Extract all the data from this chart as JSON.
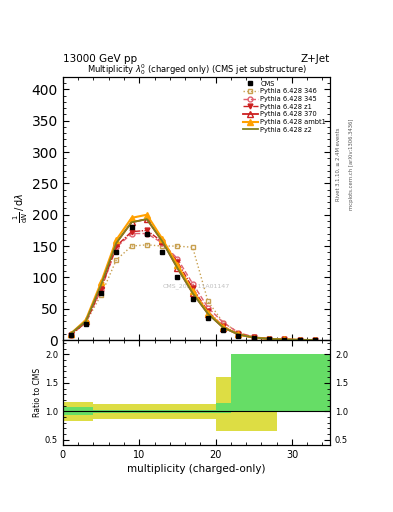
{
  "title": "Multiplicity $\\lambda_{0}^{0}$ (charged only) (CMS jet substructure)",
  "top_left_label": "13000 GeV pp",
  "top_right_label": "Z+Jet",
  "right_label1": "Rivet 3.1.10, ≥ 2.4M events",
  "right_label2": "mcplots.cern.ch [arXiv:1306.3436]",
  "xlabel": "multiplicity (charged-only)",
  "watermark": "CMS_2021_11A01147",
  "xlim": [
    0,
    35
  ],
  "ylim_main": [
    0,
    420
  ],
  "ylim_ratio": [
    0.4,
    2.25
  ],
  "yticks_main": [
    0,
    50,
    100,
    150,
    200,
    250,
    300,
    350,
    400
  ],
  "yticks_ratio": [
    0.5,
    1.0,
    1.5,
    2.0
  ],
  "cms_x": [
    1,
    3,
    5,
    7,
    9,
    11,
    13,
    15,
    17,
    19,
    21,
    23,
    25,
    27,
    29,
    31,
    33
  ],
  "cms_y": [
    8,
    25,
    75,
    140,
    180,
    170,
    140,
    100,
    65,
    35,
    16,
    7,
    3,
    1.5,
    0.8,
    0.3,
    0.1
  ],
  "p345_x": [
    1,
    3,
    5,
    7,
    9,
    11,
    13,
    15,
    17,
    19,
    21,
    23,
    25,
    27,
    29,
    31,
    33
  ],
  "p345_y": [
    8,
    28,
    80,
    148,
    170,
    170,
    155,
    130,
    90,
    52,
    28,
    12,
    5,
    2.5,
    1.2,
    0.5,
    0.2
  ],
  "p346_x": [
    1,
    3,
    5,
    7,
    9,
    11,
    13,
    15,
    17,
    19,
    21,
    23,
    25,
    27,
    29,
    31,
    33
  ],
  "p346_y": [
    8,
    28,
    72,
    128,
    150,
    152,
    150,
    150,
    148,
    62,
    28,
    12,
    5,
    2.5,
    1.2,
    0.5,
    0.2
  ],
  "p370_x": [
    1,
    3,
    5,
    7,
    9,
    11,
    13,
    15,
    17,
    19,
    21,
    23,
    25,
    27,
    29,
    31,
    33
  ],
  "p370_y": [
    10,
    30,
    88,
    155,
    188,
    193,
    158,
    115,
    75,
    42,
    20,
    9,
    4,
    2,
    1,
    0.4,
    0.15
  ],
  "pambt1_x": [
    1,
    3,
    5,
    7,
    9,
    11,
    13,
    15,
    17,
    19,
    21,
    23,
    25,
    27,
    29,
    31,
    33
  ],
  "pambt1_y": [
    10,
    32,
    92,
    160,
    195,
    200,
    162,
    120,
    78,
    44,
    21,
    9,
    4,
    2,
    1,
    0.4,
    0.15
  ],
  "pz1_x": [
    1,
    3,
    5,
    7,
    9,
    11,
    13,
    15,
    17,
    19,
    21,
    23,
    25,
    27,
    29,
    31,
    33
  ],
  "pz1_y": [
    8,
    28,
    82,
    150,
    173,
    175,
    157,
    125,
    83,
    46,
    22,
    10,
    4.5,
    2.2,
    1.1,
    0.45,
    0.18
  ],
  "pz2_x": [
    1,
    3,
    5,
    7,
    9,
    11,
    13,
    15,
    17,
    19,
    21,
    23,
    25,
    27,
    29,
    31,
    33
  ],
  "pz2_y": [
    10,
    30,
    88,
    155,
    188,
    193,
    158,
    115,
    75,
    42,
    20,
    9,
    4,
    2,
    1,
    0.4,
    0.15
  ],
  "ratio_bin_edges": [
    0,
    4,
    8,
    12,
    16,
    20,
    22,
    28,
    35
  ],
  "ratio_green_lo": [
    0.93,
    0.97,
    0.97,
    0.97,
    0.97,
    0.97,
    1.0,
    1.0
  ],
  "ratio_green_hi": [
    1.07,
    1.03,
    1.03,
    1.03,
    1.03,
    1.15,
    2.0,
    2.0
  ],
  "ratio_yellow_lo": [
    0.83,
    0.87,
    0.87,
    0.87,
    0.87,
    0.65,
    0.65,
    1.0
  ],
  "ratio_yellow_hi": [
    1.17,
    1.13,
    1.13,
    1.13,
    1.13,
    1.6,
    2.0,
    2.0
  ],
  "color_cms": "#000000",
  "color_345": "#e06070",
  "color_346": "#c8a050",
  "color_370": "#cc2020",
  "color_ambt1": "#ffa000",
  "color_z1": "#cc2020",
  "color_z2": "#808020",
  "color_green": "#66dd66",
  "color_yellow": "#dddd44"
}
